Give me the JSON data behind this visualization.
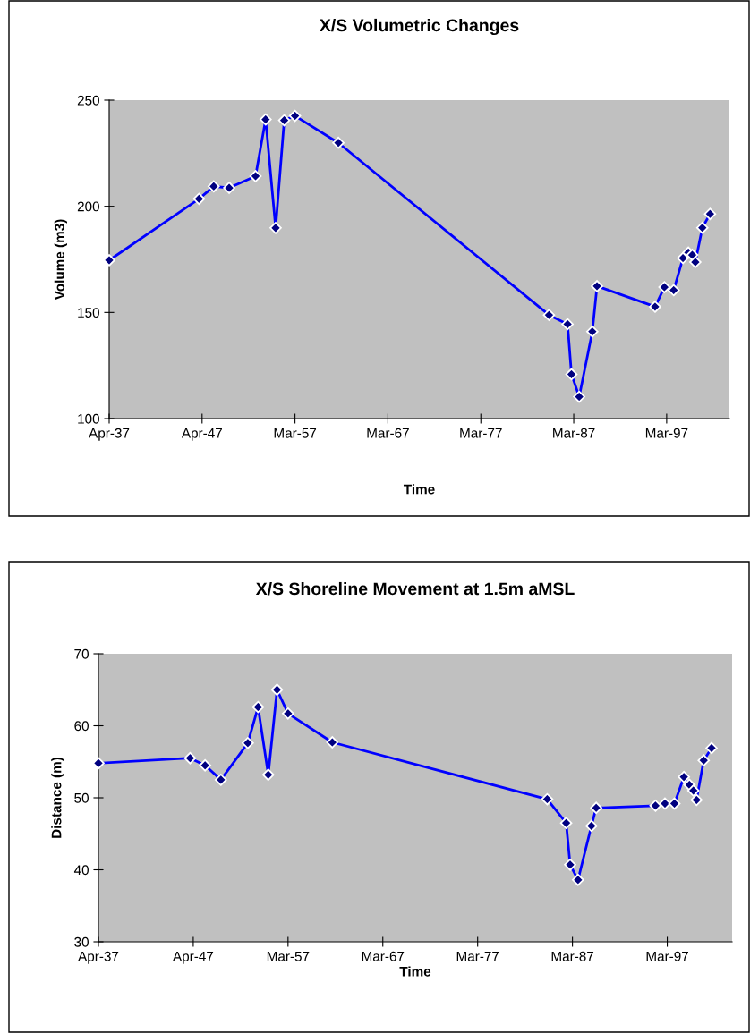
{
  "chart_data": [
    {
      "type": "line",
      "title": "X/S Volumetric Changes",
      "xlabel": "Time",
      "ylabel": "Volume (m3)",
      "x": [
        "1937-04",
        "1946-12",
        "1948-07",
        "1950-03",
        "1953-01",
        "1954-02",
        "1955-03",
        "1956-02",
        "1957-04",
        "1961-12",
        "1984-08",
        "1986-08",
        "1987-01",
        "1987-11",
        "1989-04",
        "1989-10",
        "1996-01",
        "1997-01",
        "1998-01",
        "1999-01",
        "1999-08",
        "2000-01",
        "2000-05",
        "2001-02",
        "2001-12"
      ],
      "series": [
        {
          "color": "#0000ff",
          "values": [
            174.6,
            203.5,
            209.4,
            208.7,
            214.2,
            240.9,
            189.8,
            240.5,
            242.6,
            229.9,
            148.8,
            144.5,
            120.9,
            110.3,
            141.0,
            162.4,
            152.7,
            161.9,
            160.5,
            175.6,
            178.2,
            177.1,
            173.7,
            189.9,
            196.4
          ]
        }
      ],
      "xlim": [
        "1937-04-01",
        "2004-01-01"
      ],
      "xticks": [
        {
          "value": "1937-04-01",
          "label": "Apr-37"
        },
        {
          "value": "1947-04-01",
          "label": "Apr-47"
        },
        {
          "value": "1957-03-31",
          "label": "Mar-57"
        },
        {
          "value": "1967-03-31",
          "label": "Mar-67"
        },
        {
          "value": "1977-03-31",
          "label": "Mar-77"
        },
        {
          "value": "1987-03-31",
          "label": "Mar-87"
        },
        {
          "value": "1997-03-31",
          "label": "Mar-97"
        }
      ],
      "ylim": [
        100,
        250
      ],
      "yticks": [
        100,
        150,
        200,
        250
      ],
      "grid": false,
      "marker": "diamond",
      "line_style": "solid"
    },
    {
      "type": "line",
      "title": "X/S Shoreline Movement at 1.5m aMSL",
      "xlabel": "Time",
      "ylabel": "Distance (m)",
      "x": [
        "1937-04",
        "1946-12",
        "1948-07",
        "1950-03",
        "1953-01",
        "1954-02",
        "1955-03",
        "1956-02",
        "1957-04",
        "1961-12",
        "1984-08",
        "1986-08",
        "1987-01",
        "1987-11",
        "1989-04",
        "1989-10",
        "1996-01",
        "1997-01",
        "1998-01",
        "1999-01",
        "1999-08",
        "2000-01",
        "2000-05",
        "2001-02",
        "2001-12"
      ],
      "series": [
        {
          "color": "#0000ff",
          "values": [
            54.8,
            55.5,
            54.5,
            52.5,
            57.6,
            62.6,
            53.2,
            65.0,
            61.7,
            57.7,
            49.8,
            46.5,
            40.7,
            38.6,
            46.1,
            48.6,
            48.9,
            49.2,
            49.2,
            52.9,
            51.8,
            51.0,
            49.7,
            55.2,
            56.9
          ]
        }
      ],
      "xlim": [
        "1937-04-01",
        "2004-02-01"
      ],
      "xticks": [
        {
          "value": "1937-04-01",
          "label": "Apr-37"
        },
        {
          "value": "1947-04-01",
          "label": "Apr-47"
        },
        {
          "value": "1957-03-31",
          "label": "Mar-57"
        },
        {
          "value": "1967-03-31",
          "label": "Mar-67"
        },
        {
          "value": "1977-03-31",
          "label": "Mar-77"
        },
        {
          "value": "1987-03-31",
          "label": "Mar-87"
        },
        {
          "value": "1997-03-31",
          "label": "Mar-97"
        }
      ],
      "ylim": [
        30,
        70
      ],
      "yticks": [
        30,
        40,
        50,
        60,
        70
      ],
      "grid": false,
      "marker": "diamond",
      "line_style": "solid"
    }
  ]
}
